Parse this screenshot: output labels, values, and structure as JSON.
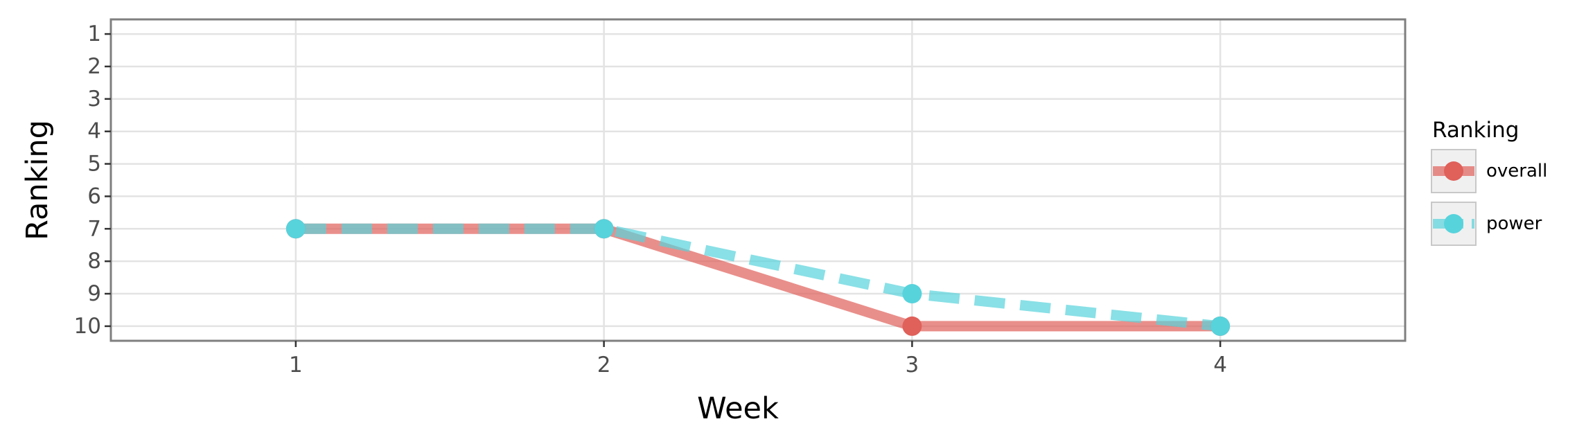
{
  "chart_data": {
    "type": "line",
    "title": "",
    "xlabel": "Week",
    "ylabel": "Ranking",
    "x": [
      1,
      2,
      3,
      4
    ],
    "x_ticks": [
      "1",
      "2",
      "3",
      "4"
    ],
    "y_ticks": [
      "1",
      "2",
      "3",
      "4",
      "5",
      "6",
      "7",
      "8",
      "9",
      "10"
    ],
    "xlim": [
      0.4,
      4.6
    ],
    "ylim": [
      0.55,
      10.45
    ],
    "y_reversed": true,
    "grid": true,
    "legend": {
      "title": "Ranking",
      "position": "right"
    },
    "series": [
      {
        "name": "overall",
        "values": [
          7,
          7,
          10,
          10
        ],
        "color": "#e0605a",
        "line_style": "solid"
      },
      {
        "name": "power",
        "values": [
          7,
          7,
          9,
          10
        ],
        "color": "#57d3dc",
        "line_style": "dashed"
      }
    ]
  }
}
